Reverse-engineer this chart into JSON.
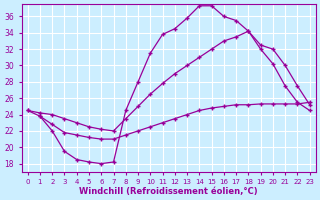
{
  "xlabel": "Windchill (Refroidissement éolien,°C)",
  "bg_color": "#cceeff",
  "grid_color": "#ffffff",
  "line_color": "#990099",
  "xlim": [
    -0.5,
    23.5
  ],
  "ylim": [
    17,
    37.5
  ],
  "yticks": [
    18,
    20,
    22,
    24,
    26,
    28,
    30,
    32,
    34,
    36
  ],
  "xticks": [
    0,
    1,
    2,
    3,
    4,
    5,
    6,
    7,
    8,
    9,
    10,
    11,
    12,
    13,
    14,
    15,
    16,
    17,
    18,
    19,
    20,
    21,
    22,
    23
  ],
  "line1_x": [
    0,
    1,
    2,
    3,
    4,
    5,
    6,
    7,
    8,
    9,
    10,
    11,
    12,
    13,
    14,
    15,
    16,
    17,
    18,
    19,
    20,
    21,
    22,
    23
  ],
  "line1_y": [
    24.5,
    23.8,
    22.0,
    19.5,
    18.5,
    18.2,
    18.0,
    18.2,
    24.5,
    28.0,
    31.5,
    33.8,
    34.5,
    35.8,
    37.3,
    37.3,
    36.0,
    35.5,
    34.2,
    32.0,
    30.2,
    27.5,
    25.5,
    24.5
  ],
  "line2_x": [
    0,
    1,
    2,
    3,
    4,
    5,
    6,
    7,
    8,
    9,
    10,
    11,
    12,
    13,
    14,
    15,
    16,
    17,
    18,
    19,
    20,
    21,
    22,
    23
  ],
  "line2_y": [
    24.5,
    24.2,
    24.0,
    23.5,
    23.0,
    22.5,
    22.2,
    22.0,
    23.5,
    25.0,
    26.5,
    27.8,
    29.0,
    30.0,
    31.0,
    32.0,
    33.0,
    33.5,
    34.2,
    32.5,
    32.0,
    30.0,
    27.5,
    25.2
  ],
  "line3_x": [
    1,
    2,
    3,
    4,
    5,
    6,
    7,
    8,
    9,
    10,
    11,
    12,
    13,
    14,
    15,
    16,
    17,
    18,
    19,
    20,
    21,
    22,
    23
  ],
  "line3_y": [
    23.8,
    22.8,
    21.8,
    21.5,
    21.2,
    21.0,
    21.0,
    21.5,
    22.0,
    22.5,
    23.0,
    23.5,
    24.0,
    24.5,
    24.8,
    25.0,
    25.2,
    25.2,
    25.3,
    25.3,
    25.3,
    25.3,
    25.5
  ]
}
